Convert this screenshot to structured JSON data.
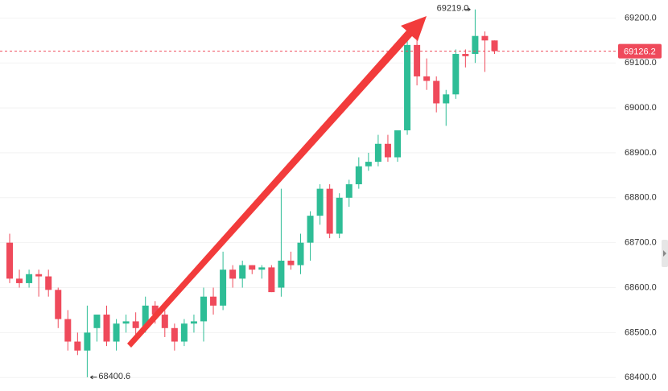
{
  "chart_data": {
    "type": "candlestick",
    "ylim": [
      68370,
      69240
    ],
    "yticks": [
      {
        "value": 68400,
        "label": "68400.0"
      },
      {
        "value": 68500,
        "label": "68500.0"
      },
      {
        "value": 68600,
        "label": "68600.0"
      },
      {
        "value": 68700,
        "label": "68700.0"
      },
      {
        "value": 68800,
        "label": "68800.0"
      },
      {
        "value": 68900,
        "label": "68900.0"
      },
      {
        "value": 69000,
        "label": "69000.0"
      },
      {
        "value": 69100,
        "label": "69100.0"
      },
      {
        "value": 69200,
        "label": "69200.0"
      }
    ],
    "up_color": "#2ebd96",
    "down_color": "#ef4a5b",
    "open": [
      68700,
      68620,
      68610,
      68630,
      68625,
      68595,
      68530,
      68480,
      68460,
      68510,
      68540,
      68480,
      68520,
      68525,
      68510,
      68560,
      68540,
      68510,
      68480,
      68520,
      68525,
      68580,
      68560,
      68640,
      68620,
      68650,
      68640,
      68645,
      68600,
      68660,
      68650,
      68700,
      68760,
      68820,
      68720,
      68800,
      68830,
      68870,
      68880,
      68920,
      68890,
      68950,
      69140,
      69070,
      69060,
      69010,
      69030,
      69120,
      69120,
      69160,
      69150
    ],
    "high": [
      68720,
      68640,
      68640,
      68640,
      68640,
      68600,
      68550,
      68500,
      68560,
      68540,
      68560,
      68530,
      68540,
      68545,
      68580,
      68570,
      68550,
      68520,
      68530,
      68540,
      68600,
      68600,
      68680,
      68650,
      68660,
      68650,
      68650,
      68650,
      68820,
      68680,
      68720,
      68770,
      68830,
      68830,
      68810,
      68840,
      68890,
      68900,
      68940,
      68940,
      68950,
      69160,
      69160,
      69110,
      69070,
      69040,
      69130,
      69130,
      69219,
      69170,
      69150
    ],
    "low": [
      68610,
      68600,
      68600,
      68580,
      68580,
      68510,
      68460,
      68450,
      68400.6,
      68480,
      68470,
      68460,
      68500,
      68490,
      68500,
      68520,
      68490,
      68460,
      68470,
      68500,
      68480,
      68540,
      68550,
      68600,
      68600,
      68630,
      68620,
      68590,
      68580,
      68640,
      68630,
      68660,
      68740,
      68710,
      68710,
      68780,
      68820,
      68860,
      68870,
      68880,
      68880,
      68940,
      69050,
      69040,
      68990,
      68960,
      69020,
      69090,
      69100,
      69080,
      69120
    ],
    "close": [
      68620,
      68610,
      68630,
      68625,
      68595,
      68530,
      68480,
      68460,
      68500,
      68540,
      68480,
      68520,
      68525,
      68510,
      68560,
      68540,
      68510,
      68480,
      68520,
      68525,
      68580,
      68560,
      68640,
      68620,
      68650,
      68640,
      68645,
      68590,
      68660,
      68650,
      68700,
      68760,
      68820,
      68720,
      68800,
      68830,
      68870,
      68880,
      68920,
      68890,
      68950,
      69140,
      69070,
      69060,
      69010,
      69030,
      69120,
      69115,
      69160,
      69150,
      69126.2
    ],
    "price_line": 69126.2,
    "annotations": [
      {
        "value": 69219.0,
        "label": "69219.0"
      },
      {
        "value": 68400.6,
        "label": "68400.6"
      }
    ]
  }
}
